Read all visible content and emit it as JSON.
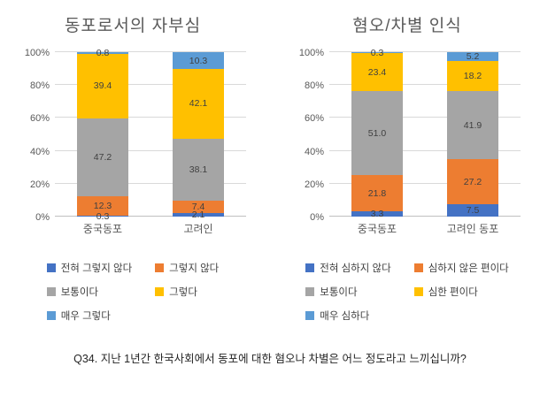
{
  "caption": "Q34. 지난 1년간 한국사회에서 동포에 대한 혐오나 차별은 어느 정도라고 느끼십니까?",
  "colors": {
    "strongly_no": "#4472C4",
    "no": "#ED7D31",
    "neutral": "#A5A5A5",
    "yes": "#FFC000",
    "strongly_yes": "#5B9BD5"
  },
  "chart_data": [
    {
      "type": "bar",
      "stacked": true,
      "title": "동포로서의 자부심",
      "categories": [
        "중국동포",
        "고려인"
      ],
      "series": [
        {
          "name": "전혀 그렇지 않다",
          "color": "#4472C4",
          "values": [
            0.3,
            2.1
          ]
        },
        {
          "name": "그렇지 않다",
          "color": "#ED7D31",
          "values": [
            12.3,
            7.4
          ]
        },
        {
          "name": "보통이다",
          "color": "#A5A5A5",
          "values": [
            47.2,
            38.1
          ]
        },
        {
          "name": "그렇다",
          "color": "#FFC000",
          "values": [
            39.4,
            42.1
          ]
        },
        {
          "name": "매우 그렇다",
          "color": "#5B9BD5",
          "values": [
            0.8,
            10.3
          ]
        }
      ],
      "ylim": [
        0,
        100
      ],
      "yticks": [
        "0%",
        "20%",
        "40%",
        "60%",
        "80%",
        "100%"
      ],
      "grid": true,
      "legend_position": "bottom"
    },
    {
      "type": "bar",
      "stacked": true,
      "title": "혐오/차별 인식",
      "categories": [
        "중국동포",
        "고려인 동포"
      ],
      "series": [
        {
          "name": "전혀 심하지 않다",
          "color": "#4472C4",
          "values": [
            3.3,
            7.5
          ]
        },
        {
          "name": "심하지 않은 편이다",
          "color": "#ED7D31",
          "values": [
            21.8,
            27.2
          ]
        },
        {
          "name": "보통이다",
          "color": "#A5A5A5",
          "values": [
            51.0,
            41.9
          ]
        },
        {
          "name": "심한 편이다",
          "color": "#FFC000",
          "values": [
            23.4,
            18.2
          ]
        },
        {
          "name": "매우 심하다",
          "color": "#5B9BD5",
          "values": [
            0.3,
            5.2
          ]
        }
      ],
      "ylim": [
        0,
        100
      ],
      "yticks": [
        "0%",
        "20%",
        "40%",
        "60%",
        "80%",
        "100%"
      ],
      "grid": true,
      "legend_position": "bottom"
    }
  ]
}
